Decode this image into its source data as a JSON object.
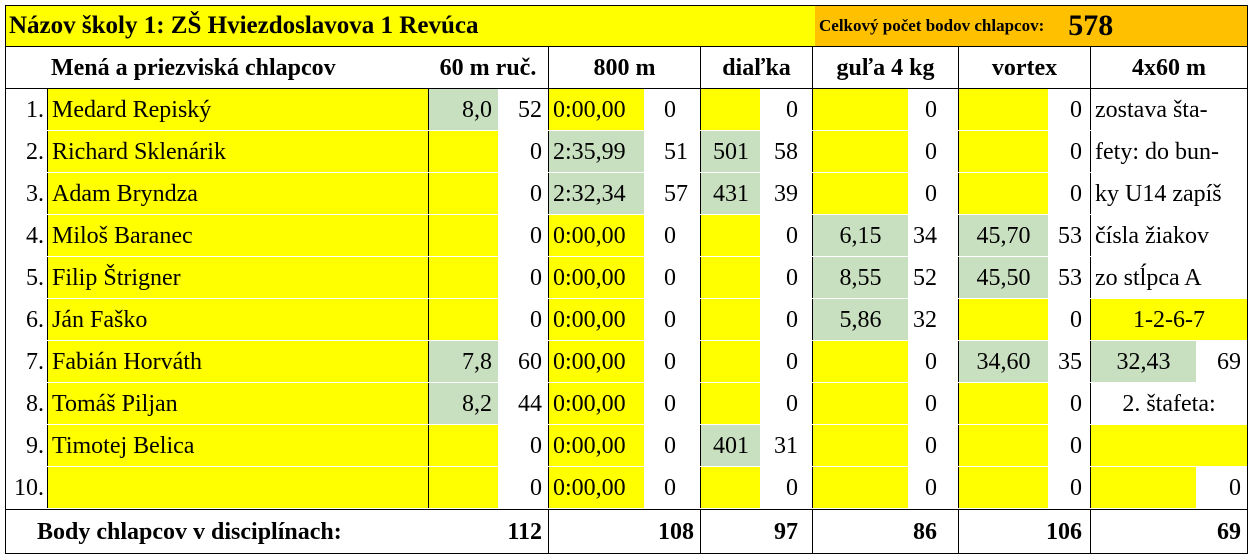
{
  "header": {
    "school_title": "Názov školy 1: ZŠ Hviezdoslavova 1 Revúca",
    "total_points_label": "Celkový počet bodov chlapcov:",
    "total_points_value": "578"
  },
  "columns": {
    "names": "Mená a priezviská chlapcov",
    "sprint": "60 m ruč.",
    "run800": "800 m",
    "longjump": "diaľka",
    "shot": "guľa 4 kg",
    "vortex": "vortex",
    "relay": "4x60 m"
  },
  "rows": [
    {
      "num": "1.",
      "name": "Medard Repiský",
      "sprint": "8,0",
      "sprint_pts": "52",
      "run800": "0:00,00",
      "run800_pts": "0",
      "longjump": "",
      "longjump_pts": "0",
      "shot": "",
      "shot_pts": "0",
      "vortex": "",
      "vortex_pts": "0"
    },
    {
      "num": "2.",
      "name": "Richard Sklenárik",
      "sprint": "",
      "sprint_pts": "0",
      "run800": "2:35,99",
      "run800_pts": "51",
      "longjump": "501",
      "longjump_pts": "58",
      "shot": "",
      "shot_pts": "0",
      "vortex": "",
      "vortex_pts": "0"
    },
    {
      "num": "3.",
      "name": "Adam Bryndza",
      "sprint": "",
      "sprint_pts": "0",
      "run800": "2:32,34",
      "run800_pts": "57",
      "longjump": "431",
      "longjump_pts": "39",
      "shot": "",
      "shot_pts": "0",
      "vortex": "",
      "vortex_pts": "0"
    },
    {
      "num": "4.",
      "name": "Miloš Baranec",
      "sprint": "",
      "sprint_pts": "0",
      "run800": "0:00,00",
      "run800_pts": "0",
      "longjump": "",
      "longjump_pts": "0",
      "shot": "6,15",
      "shot_pts": "34",
      "vortex": "45,70",
      "vortex_pts": "53"
    },
    {
      "num": "5.",
      "name": "Filip Štrigner",
      "sprint": "",
      "sprint_pts": "0",
      "run800": "0:00,00",
      "run800_pts": "0",
      "longjump": "",
      "longjump_pts": "0",
      "shot": "8,55",
      "shot_pts": "52",
      "vortex": "45,50",
      "vortex_pts": "53"
    },
    {
      "num": "6.",
      "name": "Ján Faško",
      "sprint": "",
      "sprint_pts": "0",
      "run800": "0:00,00",
      "run800_pts": "0",
      "longjump": "",
      "longjump_pts": "0",
      "shot": "5,86",
      "shot_pts": "32",
      "vortex": "",
      "vortex_pts": "0"
    },
    {
      "num": "7.",
      "name": "Fabián Horváth",
      "sprint": "7,8",
      "sprint_pts": "60",
      "run800": "0:00,00",
      "run800_pts": "0",
      "longjump": "",
      "longjump_pts": "0",
      "shot": "",
      "shot_pts": "0",
      "vortex": "34,60",
      "vortex_pts": "35"
    },
    {
      "num": "8.",
      "name": "Tomáš Piljan",
      "sprint": "8,2",
      "sprint_pts": "44",
      "run800": "0:00,00",
      "run800_pts": "0",
      "longjump": "",
      "longjump_pts": "0",
      "shot": "",
      "shot_pts": "0",
      "vortex": "",
      "vortex_pts": "0"
    },
    {
      "num": "9.",
      "name": "Timotej Belica",
      "sprint": "",
      "sprint_pts": "0",
      "run800": "0:00,00",
      "run800_pts": "0",
      "longjump": "401",
      "longjump_pts": "31",
      "shot": "",
      "shot_pts": "0",
      "vortex": "",
      "vortex_pts": "0"
    },
    {
      "num": "10.",
      "name": "",
      "sprint": "",
      "sprint_pts": "0",
      "run800": "0:00,00",
      "run800_pts": "0",
      "longjump": "",
      "longjump_pts": "0",
      "shot": "",
      "shot_pts": "0",
      "vortex": "",
      "vortex_pts": "0"
    }
  ],
  "relay_notes": [
    "zostava šta-",
    "fety: do bun-",
    "ky U14 zapíš",
    "čísla žiakov",
    "zo stĺpca A"
  ],
  "relay1": {
    "members": "1-2-6-7",
    "time": "32,43",
    "points": "69"
  },
  "relay2": {
    "label": "2. štafeta:",
    "members": "",
    "points": "0"
  },
  "totals": {
    "label": "Body chlapcov v disciplínach:",
    "sprint": "112",
    "run800": "108",
    "longjump": "97",
    "shot": "86",
    "vortex": "106",
    "relay": "69"
  },
  "colors": {
    "input_cell": "#ffff00",
    "filled_cell": "#c8dfc0",
    "total_box": "#ffc000"
  }
}
